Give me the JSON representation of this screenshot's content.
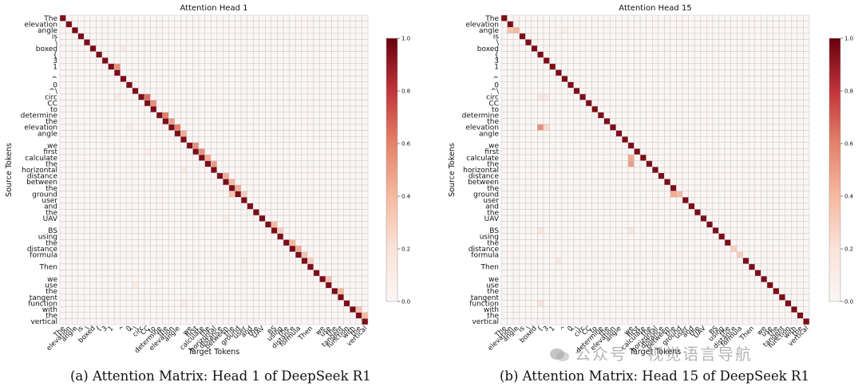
{
  "colors": {
    "low": "#fbf6f5",
    "mid": "#ef9a7d",
    "high": "#67000d",
    "grid": "#bfbfbf",
    "text": "#111111"
  },
  "watermark": {
    "text": "公众号 · 视觉语言导航",
    "icon": "wechat-icon"
  },
  "chart_data": [
    {
      "type": "heatmap",
      "title": "Attention Head 1",
      "xlabel": "Target Tokens",
      "ylabel": "Source Tokens",
      "caption": "(a) Attention Matrix: Head 1 of DeepSeek R1",
      "colorbar": {
        "min": 0.0,
        "max": 1.0,
        "ticks": [
          "0.0",
          "0.2",
          "0.4",
          "0.6",
          "0.8",
          "1.0"
        ]
      },
      "tokens": [
        "The",
        "elevation",
        "angle",
        "is",
        "\\",
        "boxed",
        "{",
        "3",
        "1",
        "",
        "^",
        "0",
        "^\\",
        "circ",
        "CC",
        "to",
        "determine",
        "the",
        "elevation",
        "angle",
        "",
        "we",
        "first",
        "calculate",
        "the",
        "horizontal",
        "distance",
        "between",
        "the",
        "ground",
        "user",
        "and",
        "the",
        "UAV",
        "",
        "BS",
        "using",
        "the",
        "distance",
        "formula",
        "",
        "Then",
        "",
        "we",
        "use",
        "the",
        "tangent",
        "function",
        "with",
        "the",
        "vertical"
      ],
      "diagonal": 0.95,
      "offdiag": [
        [
          8,
          9,
          0.55
        ],
        [
          13,
          14,
          0.65
        ],
        [
          14,
          15,
          0.55
        ],
        [
          16,
          17,
          0.6
        ],
        [
          17,
          18,
          0.5
        ],
        [
          18,
          19,
          0.6
        ],
        [
          19,
          20,
          0.45
        ],
        [
          21,
          22,
          0.55
        ],
        [
          22,
          23,
          0.55
        ],
        [
          23,
          24,
          0.45
        ],
        [
          24,
          25,
          0.5
        ],
        [
          26,
          27,
          0.45
        ],
        [
          27,
          28,
          0.4
        ],
        [
          28,
          29,
          0.45
        ],
        [
          29,
          28,
          0.35
        ],
        [
          29,
          30,
          0.3
        ],
        [
          34,
          35,
          0.4
        ],
        [
          35,
          36,
          0.3
        ],
        [
          37,
          38,
          0.4
        ],
        [
          38,
          39,
          0.45
        ],
        [
          39,
          40,
          0.35
        ],
        [
          40,
          41,
          0.3
        ],
        [
          43,
          44,
          0.35
        ],
        [
          45,
          46,
          0.4
        ],
        [
          48,
          49,
          0.35
        ],
        [
          49,
          50,
          0.4
        ],
        [
          5,
          10,
          0.12
        ],
        [
          13,
          9,
          0.12
        ],
        [
          18,
          11,
          0.1
        ],
        [
          22,
          14,
          0.1
        ],
        [
          25,
          20,
          0.12
        ],
        [
          33,
          27,
          0.1
        ],
        [
          40,
          30,
          0.1
        ],
        [
          44,
          12,
          0.12
        ],
        [
          47,
          20,
          0.1
        ]
      ]
    },
    {
      "type": "heatmap",
      "title": "Attention Head 15",
      "xlabel": "Target Tokens",
      "ylabel": "Source Tokens",
      "caption": "(b) Attention Matrix: Head 15 of DeepSeek R1",
      "colorbar": {
        "min": 0.0,
        "max": 1.0,
        "ticks": [
          "0.0",
          "0.2",
          "0.4",
          "0.6",
          "0.8",
          "1.0"
        ]
      },
      "tokens": [
        "The",
        "elevation",
        "angle",
        "is",
        "\\",
        "boxed",
        "{",
        "3",
        "1",
        "",
        "^",
        "0",
        "^\\",
        "circ",
        "CC",
        "to",
        "determine",
        "the",
        "elevation",
        "angle",
        "",
        "we",
        "first",
        "calculate",
        "the",
        "horizontal",
        "distance",
        "between",
        "the",
        "ground",
        "user",
        "and",
        "the",
        "UAV",
        "",
        "BS",
        "using",
        "the",
        "distance",
        "formula",
        "",
        "Then",
        "",
        "we",
        "use",
        "the",
        "tangent",
        "function",
        "with",
        "the",
        "vertical"
      ],
      "diagonal": 0.95,
      "offdiag": [
        [
          2,
          1,
          0.35
        ],
        [
          2,
          2,
          0.4
        ],
        [
          18,
          6,
          0.55
        ],
        [
          18,
          7,
          0.25
        ],
        [
          23,
          21,
          0.45
        ],
        [
          24,
          21,
          0.5
        ],
        [
          29,
          28,
          0.45
        ],
        [
          29,
          29,
          0.4
        ],
        [
          38,
          38,
          0.3
        ],
        [
          39,
          39,
          0.3
        ],
        [
          2,
          10,
          0.1
        ],
        [
          13,
          6,
          0.15
        ],
        [
          13,
          7,
          0.12
        ],
        [
          35,
          6,
          0.15
        ],
        [
          35,
          21,
          0.15
        ],
        [
          47,
          6,
          0.2
        ],
        [
          40,
          9,
          0.12
        ]
      ]
    }
  ]
}
